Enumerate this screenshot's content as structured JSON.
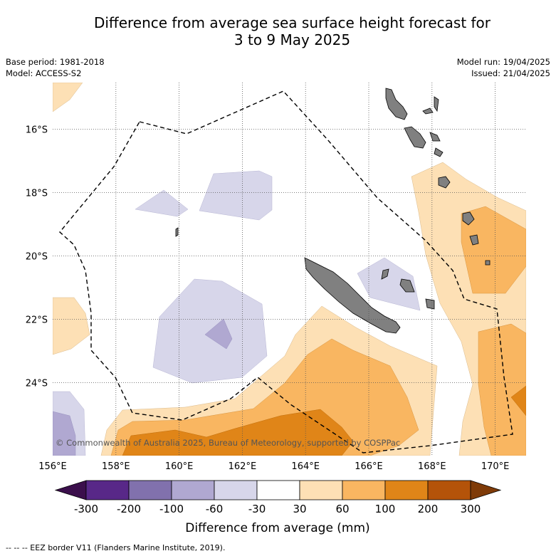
{
  "title": {
    "line1": "Difference from average sea surface height forecast for",
    "line2": "3 to 9 May 2025"
  },
  "meta": {
    "base_period": "Base period: 1981-2018",
    "model": "Model: ACCESS-S2",
    "model_run": "Model run: 19/04/2025",
    "issued": "Issued: 21/04/2025"
  },
  "map": {
    "lon_labels": [
      "156°E",
      "158°E",
      "160°E",
      "162°E",
      "164°E",
      "166°E",
      "168°E",
      "170°E"
    ],
    "lat_labels": [
      "16°S",
      "18°S",
      "20°S",
      "22°S",
      "24°S"
    ],
    "land_color": "#808080",
    "eez_line_style": "dashed",
    "copyright": "© Commonwealth of Australia 2025, Bureau of Meteorology, supported by COSPPac"
  },
  "legend": {
    "colors": [
      "#3b0f4c",
      "#582888",
      "#8171ad",
      "#b0a8d1",
      "#d7d6ea",
      "#ffffff",
      "#fde0b5",
      "#f9b661",
      "#e08518",
      "#b45309",
      "#7f3b08"
    ],
    "tick_labels": [
      "-300",
      "-200",
      "-100",
      "-60",
      "-30",
      "30",
      "60",
      "100",
      "200",
      "300"
    ],
    "axis_label": "Difference from average (mm)"
  },
  "footer": {
    "eez_note": "--  --  -- EEZ border V11 (Flanders Marine Institute, 2019)."
  }
}
